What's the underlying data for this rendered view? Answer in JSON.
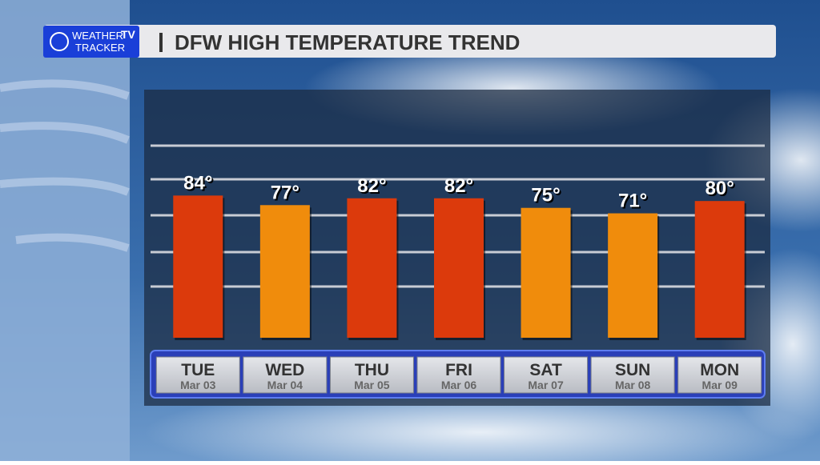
{
  "logo": {
    "line1": "WEATHER",
    "badge": "TV",
    "line2": "TRACKER"
  },
  "chart_data": {
    "type": "bar",
    "title": "DFW HIGH TEMPERATURE TREND",
    "categories": [
      "TUE",
      "WED",
      "THU",
      "FRI",
      "SAT",
      "SUN",
      "MON"
    ],
    "dates": [
      "Mar 03",
      "Mar 04",
      "Mar 05",
      "Mar 06",
      "Mar 07",
      "Mar 08",
      "Mar 09"
    ],
    "values": [
      84,
      77,
      82,
      82,
      75,
      71,
      80
    ],
    "value_labels": [
      "84°",
      "77°",
      "82°",
      "82°",
      "75°",
      "71°",
      "80°"
    ],
    "colors": [
      "#dc3a0c",
      "#f08c0c",
      "#dc3a0c",
      "#dc3a0c",
      "#f08c0c",
      "#f08c0c",
      "#dc3a0c"
    ],
    "ylim": [
      -20,
      100
    ]
  }
}
